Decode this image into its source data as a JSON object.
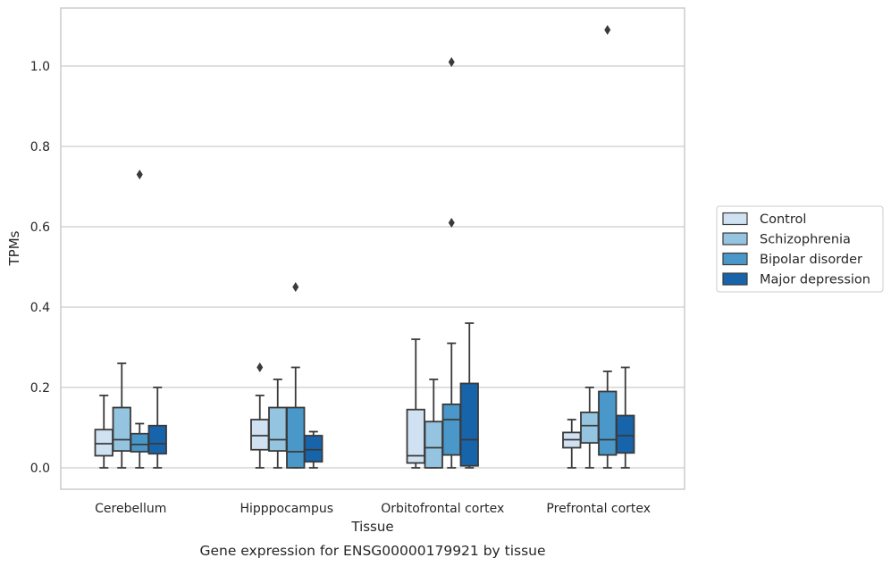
{
  "chart_data": {
    "type": "box",
    "title": "",
    "caption": "Gene expression for ENSG00000179921 by tissue",
    "xlabel": "Tissue",
    "ylabel": "TPMs",
    "ylim": [
      -0.05,
      1.15
    ],
    "yticks": [
      "0.0",
      "0.2",
      "0.4",
      "0.6",
      "0.8",
      "1.0"
    ],
    "grid": true,
    "legend_position": "right",
    "categories": [
      "Cerebellum",
      "Hipppocampus",
      "Orbitofrontal cortex",
      "Prefrontal cortex"
    ],
    "series": [
      {
        "name": "Control",
        "color": "#d0e1f2",
        "boxes": [
          {
            "whislo": 0.0,
            "q1": 0.03,
            "med": 0.06,
            "q3": 0.095,
            "whishi": 0.18,
            "fliers": []
          },
          {
            "whislo": 0.0,
            "q1": 0.045,
            "med": 0.08,
            "q3": 0.12,
            "whishi": 0.18,
            "fliers": [
              0.25
            ]
          },
          {
            "whislo": 0.0,
            "q1": 0.012,
            "med": 0.03,
            "q3": 0.145,
            "whishi": 0.32,
            "fliers": []
          },
          {
            "whislo": 0.0,
            "q1": 0.05,
            "med": 0.07,
            "q3": 0.088,
            "whishi": 0.12,
            "fliers": []
          }
        ]
      },
      {
        "name": "Schizophrenia",
        "color": "#94c4df",
        "boxes": [
          {
            "whislo": 0.0,
            "q1": 0.042,
            "med": 0.07,
            "q3": 0.15,
            "whishi": 0.26,
            "fliers": []
          },
          {
            "whislo": 0.0,
            "q1": 0.042,
            "med": 0.07,
            "q3": 0.15,
            "whishi": 0.22,
            "fliers": []
          },
          {
            "whislo": 0.0,
            "q1": 0.0,
            "med": 0.05,
            "q3": 0.115,
            "whishi": 0.22,
            "fliers": []
          },
          {
            "whislo": 0.0,
            "q1": 0.062,
            "med": 0.105,
            "q3": 0.138,
            "whishi": 0.2,
            "fliers": []
          }
        ]
      },
      {
        "name": "Bipolar disorder",
        "color": "#4a98c9",
        "boxes": [
          {
            "whislo": 0.0,
            "q1": 0.04,
            "med": 0.058,
            "q3": 0.085,
            "whishi": 0.11,
            "fliers": [
              0.73
            ]
          },
          {
            "whislo": 0.0,
            "q1": 0.0,
            "med": 0.04,
            "q3": 0.15,
            "whishi": 0.25,
            "fliers": [
              0.45
            ]
          },
          {
            "whislo": 0.0,
            "q1": 0.032,
            "med": 0.12,
            "q3": 0.158,
            "whishi": 0.31,
            "fliers": [
              0.61,
              1.01
            ]
          },
          {
            "whislo": 0.0,
            "q1": 0.032,
            "med": 0.07,
            "q3": 0.19,
            "whishi": 0.24,
            "fliers": [
              1.09
            ]
          }
        ]
      },
      {
        "name": "Major depression",
        "color": "#1764ab",
        "boxes": [
          {
            "whislo": 0.0,
            "q1": 0.035,
            "med": 0.06,
            "q3": 0.105,
            "whishi": 0.2,
            "fliers": []
          },
          {
            "whislo": 0.0,
            "q1": 0.015,
            "med": 0.045,
            "q3": 0.08,
            "whishi": 0.09,
            "fliers": []
          },
          {
            "whislo": 0.0,
            "q1": 0.005,
            "med": 0.07,
            "q3": 0.21,
            "whishi": 0.36,
            "fliers": []
          },
          {
            "whislo": 0.0,
            "q1": 0.037,
            "med": 0.08,
            "q3": 0.13,
            "whishi": 0.25,
            "fliers": []
          }
        ]
      }
    ]
  }
}
